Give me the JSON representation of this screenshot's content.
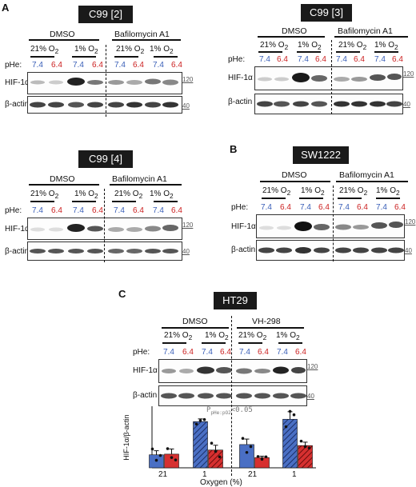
{
  "panels": {
    "A": {
      "letter": "A",
      "c99_2": {
        "title": "C99 [2]"
      },
      "c99_3": {
        "title": "C99 [3]"
      },
      "c99_4": {
        "title": "C99 [4]"
      }
    },
    "B": {
      "letter": "B",
      "sw1222": {
        "title": "SW1222"
      }
    },
    "C": {
      "letter": "C",
      "ht29": {
        "title": "HT29"
      }
    }
  },
  "labels": {
    "dmso": "DMSO",
    "bafilomycin": "Bafilomycin A1",
    "vh298": "VH-298",
    "o21": "21% O",
    "o1": "1% O",
    "o_sub": "2",
    "phe": "pHe:",
    "ph74": "7.4",
    "ph64": "6.4",
    "hif": "HIF-1α",
    "actin": "β-actin",
    "mw120": "120",
    "mw40": "40"
  },
  "colors": {
    "ph74": "#3a5fb8",
    "ph64": "#cc2222",
    "bar_blue": "#4a6fc4",
    "bar_red": "#d63030"
  },
  "chart_data": {
    "type": "bar",
    "ylabel": "HIF-1α/β-actin",
    "xlabel": "Oxygen (%)",
    "categories": [
      "21",
      "1",
      "21",
      "1"
    ],
    "groups": [
      "DMSO",
      "DMSO",
      "VH-298",
      "VH-298"
    ],
    "annotation": "P",
    "annotation_sub": "pHe:pO2",
    "annotation_tail": "<0.05",
    "ylim": [
      0,
      1.8
    ],
    "series": [
      {
        "name": "7.4",
        "values": [
          0.38,
          1.35,
          0.68,
          1.42
        ],
        "errors": [
          0.12,
          0.08,
          0.16,
          0.22
        ],
        "points": [
          [
            0.55,
            0.22,
            0.36
          ],
          [
            1.28,
            1.38,
            1.41
          ],
          [
            0.86,
            0.45,
            0.62
          ],
          [
            1.2,
            1.65,
            1.55
          ]
        ]
      },
      {
        "name": "6.4",
        "values": [
          0.4,
          0.52,
          0.3,
          0.65
        ],
        "errors": [
          0.15,
          0.14,
          0.04,
          0.1
        ],
        "points": [
          [
            0.56,
            0.3,
            0.23
          ],
          [
            0.72,
            0.48,
            0.32
          ],
          [
            0.33,
            0.25,
            0.32
          ],
          [
            0.78,
            0.62,
            0.58
          ]
        ]
      }
    ]
  }
}
